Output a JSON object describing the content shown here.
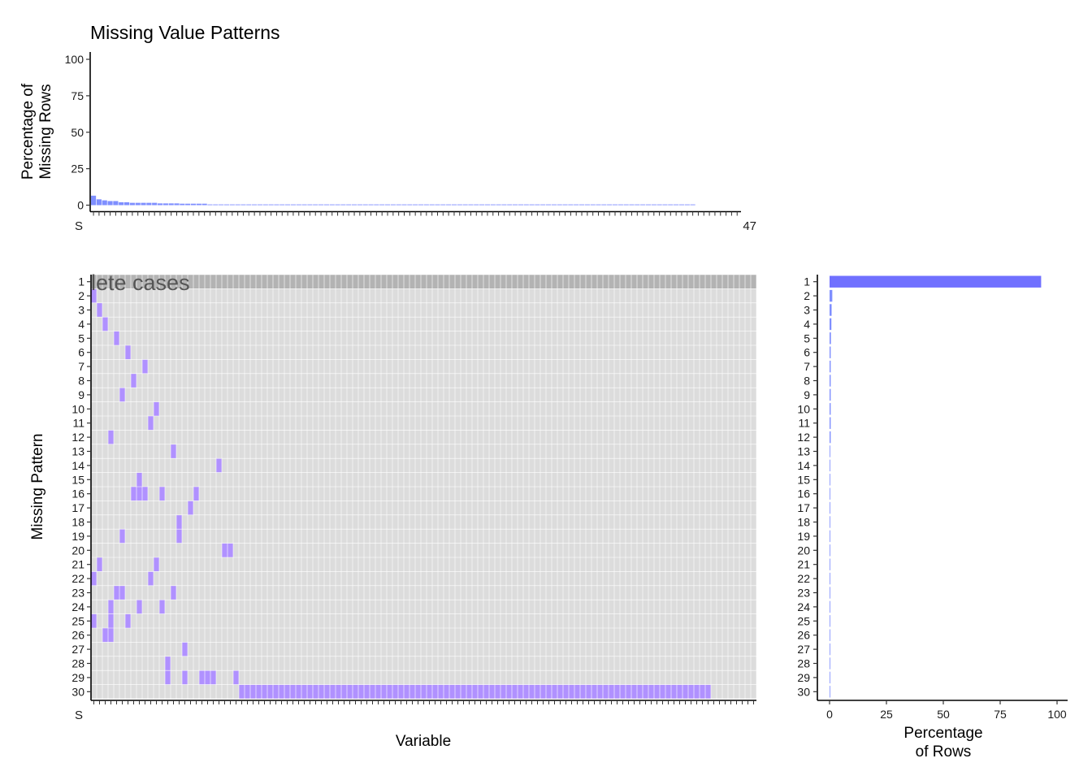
{
  "colors": {
    "missing": "#b091ff",
    "bar_fill": "#7f8fff",
    "complete_bar_fill": "#7070ff",
    "complete_row": "#b3b3b3",
    "panel_bg": "#dcdcdc",
    "grid": "#ffffff",
    "label_overlay": "#555555"
  },
  "chart_data": [
    {
      "type": "bar",
      "panel": "top",
      "title": "Missing Value Patterns",
      "ylabel": "Percentage of\nMissing Rows",
      "yticks": [
        "0",
        "25",
        "50",
        "75",
        "100"
      ],
      "ylim": [
        0,
        100
      ],
      "n_variables": 117,
      "variable_labels_legibility": "overplotted, illegible",
      "first_label_fragment": "S",
      "last_label_fragment": "47",
      "values": [
        6.5,
        4.0,
        3.3,
        2.8,
        2.8,
        2.0,
        2.0,
        1.6,
        1.6,
        1.6,
        1.6,
        1.6,
        1.2,
        1.2,
        1.2,
        1.2,
        1.0,
        1.0,
        1.0,
        1.0,
        1.0,
        0.5,
        0.5,
        0.5,
        0.5,
        0.5,
        0.5,
        0.5,
        0.5,
        0.5,
        0.5,
        0.5,
        0.5,
        0.5,
        0.5,
        0.5,
        0.5,
        0.5,
        0.5,
        0.5,
        0.5,
        0.5,
        0.5,
        0.5,
        0.5,
        0.5,
        0.5,
        0.5,
        0.5,
        0.5,
        0.5,
        0.5,
        0.5,
        0.5,
        0.5,
        0.5,
        0.5,
        0.5,
        0.5,
        0.5,
        0.5,
        0.5,
        0.5,
        0.5,
        0.5,
        0.5,
        0.5,
        0.5,
        0.5,
        0.5,
        0.5,
        0.5,
        0.5,
        0.5,
        0.5,
        0.5,
        0.5,
        0.5,
        0.5,
        0.5,
        0.5,
        0.5,
        0.5,
        0.5,
        0.5,
        0.5,
        0.5,
        0.5,
        0.5,
        0.5,
        0.5,
        0.5,
        0.5,
        0.5,
        0.5,
        0.5,
        0.5,
        0.5,
        0.5,
        0.5,
        0.5,
        0.5,
        0.5,
        0.5,
        0.5,
        0.5,
        0.5,
        0.5,
        0.5,
        0,
        0,
        0,
        0,
        0,
        0,
        0,
        0
      ]
    },
    {
      "type": "heatmap",
      "panel": "main",
      "xlabel": "Variable",
      "ylabel": "Missing Pattern",
      "n_variables": 117,
      "pattern_labels": [
        "1",
        "2",
        "3",
        "4",
        "5",
        "6",
        "7",
        "8",
        "9",
        "10",
        "11",
        "12",
        "13",
        "14",
        "15",
        "16",
        "17",
        "18",
        "19",
        "20",
        "21",
        "22",
        "23",
        "24",
        "25",
        "26",
        "27",
        "28",
        "29",
        "30"
      ],
      "complete_case_label": "lete cases",
      "complete_pattern": 1,
      "missing_cells": {
        "2": [
          0
        ],
        "3": [
          1
        ],
        "4": [
          2
        ],
        "5": [
          4
        ],
        "6": [
          6
        ],
        "7": [
          9
        ],
        "8": [
          7
        ],
        "9": [
          5
        ],
        "10": [
          11
        ],
        "11": [
          10
        ],
        "12": [
          3
        ],
        "13": [
          14
        ],
        "14": [
          22
        ],
        "15": [
          8
        ],
        "16": [
          7,
          8,
          9,
          12,
          18
        ],
        "17": [
          17
        ],
        "18": [
          15
        ],
        "19": [
          5,
          15
        ],
        "20": [
          23,
          24
        ],
        "21": [
          1,
          11
        ],
        "22": [
          0,
          10
        ],
        "23": [
          4,
          5,
          14
        ],
        "24": [
          3,
          8,
          12
        ],
        "25": [
          0,
          3,
          6
        ],
        "26": [
          2,
          3
        ],
        "27": [
          16
        ],
        "28": [
          13
        ],
        "29": [
          13,
          16,
          19,
          20,
          21,
          25
        ],
        "30": {
          "from": 26,
          "to": 108
        }
      }
    },
    {
      "type": "bar",
      "panel": "right",
      "orientation": "horizontal",
      "xlabel": "Percentage\nof Rows",
      "xticks": [
        "0",
        "25",
        "50",
        "75",
        "100"
      ],
      "xlim": [
        0,
        100
      ],
      "categories": [
        "1",
        "2",
        "3",
        "4",
        "5",
        "6",
        "7",
        "8",
        "9",
        "10",
        "11",
        "12",
        "13",
        "14",
        "15",
        "16",
        "17",
        "18",
        "19",
        "20",
        "21",
        "22",
        "23",
        "24",
        "25",
        "26",
        "27",
        "28",
        "29",
        "30"
      ],
      "values": [
        93,
        1.2,
        0.9,
        0.8,
        0.6,
        0.5,
        0.5,
        0.5,
        0.5,
        0.5,
        0.5,
        0.5,
        0.3,
        0.3,
        0.3,
        0.3,
        0.3,
        0.3,
        0.3,
        0.3,
        0.3,
        0.3,
        0.3,
        0.3,
        0.3,
        0.3,
        0.3,
        0.3,
        0.3,
        0.3
      ]
    }
  ]
}
